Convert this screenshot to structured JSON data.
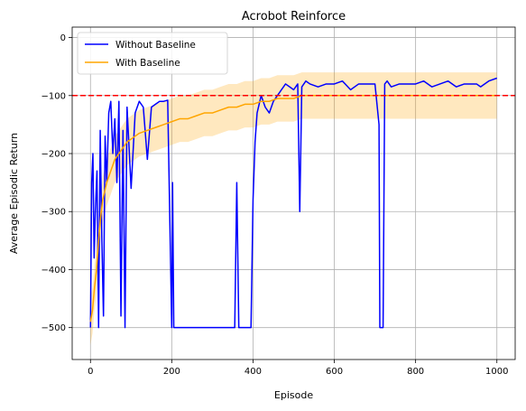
{
  "chart_data": {
    "type": "line",
    "title": "Acrobot Reinforce",
    "xlabel": "Episode",
    "ylabel": "Average Episodic Return",
    "xlim": [
      -45,
      1045
    ],
    "ylim": [
      -555,
      18
    ],
    "xticks": [
      0,
      200,
      400,
      600,
      800,
      1000
    ],
    "yticks": [
      0,
      -100,
      -200,
      -300,
      -400,
      -500
    ],
    "grid": true,
    "legend_position": "top-left",
    "reference_line": {
      "y": -100,
      "color": "#ff0000",
      "style": "dashed"
    },
    "series": [
      {
        "name": "Without Baseline",
        "color": "#0000ff",
        "band": false,
        "x": [
          0,
          3,
          6,
          9,
          12,
          16,
          20,
          24,
          28,
          32,
          36,
          40,
          45,
          50,
          55,
          60,
          65,
          70,
          75,
          80,
          85,
          90,
          95,
          100,
          110,
          120,
          130,
          140,
          150,
          160,
          170,
          180,
          190,
          200,
          202,
          205,
          210,
          220,
          240,
          260,
          280,
          300,
          320,
          340,
          355,
          360,
          365,
          380,
          395,
          400,
          405,
          410,
          420,
          430,
          440,
          450,
          460,
          470,
          480,
          490,
          500,
          510,
          515,
          520,
          530,
          540,
          560,
          580,
          600,
          620,
          640,
          660,
          680,
          700,
          710,
          712,
          716,
          720,
          724,
          730,
          740,
          760,
          780,
          800,
          820,
          840,
          860,
          880,
          900,
          920,
          940,
          950,
          960,
          980,
          1000
        ],
        "y": [
          -500,
          -250,
          -200,
          -380,
          -300,
          -230,
          -500,
          -160,
          -350,
          -480,
          -170,
          -250,
          -130,
          -110,
          -200,
          -140,
          -250,
          -110,
          -480,
          -160,
          -500,
          -120,
          -190,
          -260,
          -130,
          -110,
          -120,
          -210,
          -120,
          -115,
          -110,
          -110,
          -108,
          -500,
          -250,
          -500,
          -500,
          -500,
          -500,
          -500,
          -500,
          -500,
          -500,
          -500,
          -500,
          -250,
          -500,
          -500,
          -500,
          -280,
          -180,
          -130,
          -100,
          -120,
          -130,
          -110,
          -100,
          -90,
          -80,
          -85,
          -90,
          -80,
          -300,
          -85,
          -75,
          -80,
          -85,
          -80,
          -80,
          -75,
          -90,
          -80,
          -80,
          -80,
          -150,
          -500,
          -500,
          -500,
          -80,
          -75,
          -85,
          -80,
          -80,
          -80,
          -75,
          -85,
          -80,
          -75,
          -85,
          -80,
          -80,
          -80,
          -85,
          -75,
          -70
        ]
      },
      {
        "name": "With Baseline",
        "color": "#ffa500",
        "band": true,
        "x": [
          0,
          5,
          10,
          15,
          20,
          25,
          30,
          40,
          50,
          60,
          70,
          80,
          90,
          100,
          120,
          140,
          160,
          180,
          200,
          220,
          240,
          260,
          280,
          300,
          320,
          340,
          360,
          380,
          400,
          420,
          440,
          460,
          480,
          500,
          520,
          540,
          560,
          580,
          600,
          620,
          640,
          660,
          680,
          700,
          720,
          740,
          760,
          780,
          800,
          820,
          840,
          860,
          880,
          900,
          920,
          940,
          960,
          980,
          1000
        ],
        "y": [
          -490,
          -470,
          -430,
          -400,
          -350,
          -310,
          -280,
          -250,
          -230,
          -210,
          -200,
          -190,
          -180,
          -175,
          -165,
          -160,
          -155,
          -150,
          -145,
          -140,
          -140,
          -135,
          -130,
          -130,
          -125,
          -120,
          -120,
          -115,
          -115,
          -110,
          -110,
          -105,
          -105,
          -105,
          -100,
          -100,
          -100,
          -100,
          -100,
          -100,
          -100,
          -100,
          -100,
          -100,
          -100,
          -100,
          -100,
          -100,
          -100,
          -100,
          -100,
          -100,
          -100,
          -100,
          -100,
          -100,
          -100,
          -100,
          -100
        ]
      }
    ]
  }
}
